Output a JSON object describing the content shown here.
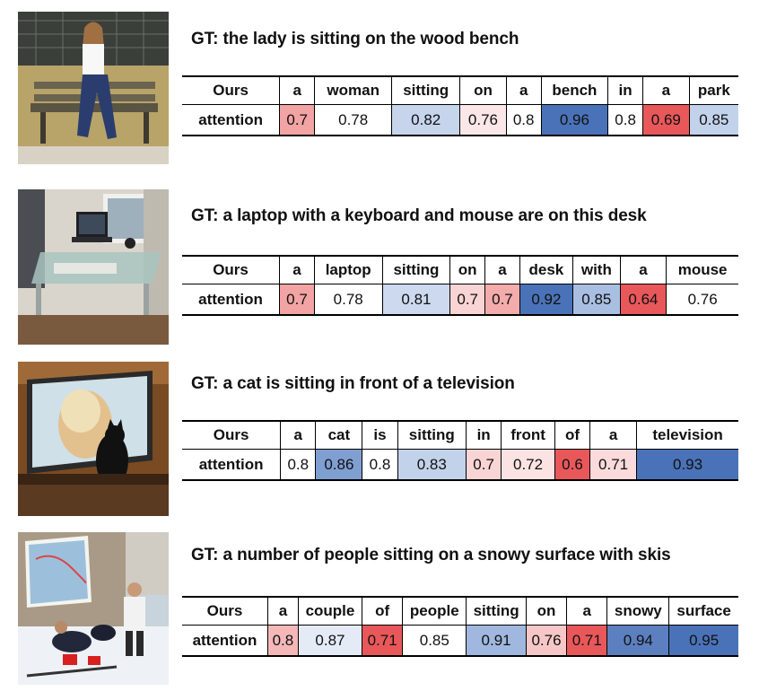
{
  "examples": [
    {
      "image": "woman-on-bench-photo",
      "gt": "GT: the lady is sitting on the wood bench",
      "header_label": "Ours",
      "row_label": "attention",
      "words": [
        "a",
        "woman",
        "sitting",
        "on",
        "a",
        "bench",
        "in",
        "a",
        "park"
      ],
      "values": [
        "0.7",
        "0.78",
        "0.82",
        "0.76",
        "0.8",
        "0.96",
        "0.8",
        "0.69",
        "0.85"
      ],
      "colors": [
        "#f2a3a3",
        "#ffffff",
        "#c6d4ec",
        "#fbe7e7",
        "#ffffff",
        "#4a72b8",
        "#ffffff",
        "#e8585a",
        "#c3d2eb"
      ]
    },
    {
      "image": "laptop-desk-photo",
      "gt": "GT: a laptop with a keyboard and mouse are on this desk",
      "header_label": "Ours",
      "row_label": "attention",
      "words": [
        "a",
        "laptop",
        "sitting",
        "on",
        "a",
        "desk",
        "with",
        "a",
        "mouse"
      ],
      "values": [
        "0.7",
        "0.78",
        "0.81",
        "0.7",
        "0.7",
        "0.92",
        "0.85",
        "0.64",
        "0.76"
      ],
      "colors": [
        "#f2a3a3",
        "#ffffff",
        "#ccd9ee",
        "#f9d4d4",
        "#f4abab",
        "#4a72b8",
        "#a9bfe2",
        "#e8585a",
        "#ffffff"
      ]
    },
    {
      "image": "cat-television-photo",
      "gt": "GT: a cat is sitting in front of a television",
      "header_label": "Ours",
      "row_label": "attention",
      "words": [
        "a",
        "cat",
        "is",
        "sitting",
        "in",
        "front",
        "of",
        "a",
        "television"
      ],
      "values": [
        "0.8",
        "0.86",
        "0.8",
        "0.83",
        "0.7",
        "0.72",
        "0.6",
        "0.71",
        "0.93"
      ],
      "colors": [
        "#ffffff",
        "#7f9fd1",
        "#ffffff",
        "#c3d2eb",
        "#f9d4d4",
        "#fbe3e3",
        "#e8585a",
        "#fadada",
        "#4a72b8"
      ]
    },
    {
      "image": "people-snow-skis-photo",
      "gt": "GT: a number of people sitting on a snowy surface with skis",
      "header_label": "Ours",
      "row_label": "attention",
      "words": [
        "a",
        "couple",
        "of",
        "people",
        "sitting",
        "on",
        "a",
        "snowy",
        "surface"
      ],
      "values": [
        "0.8",
        "0.87",
        "0.71",
        "0.85",
        "0.91",
        "0.76",
        "0.71",
        "0.94",
        "0.95"
      ],
      "colors": [
        "#f4b8b8",
        "#e4ebf6",
        "#e8585a",
        "#ffffff",
        "#a0b8df",
        "#f7c7c7",
        "#e8585a",
        "#5c80bf",
        "#4a72b8"
      ]
    }
  ]
}
